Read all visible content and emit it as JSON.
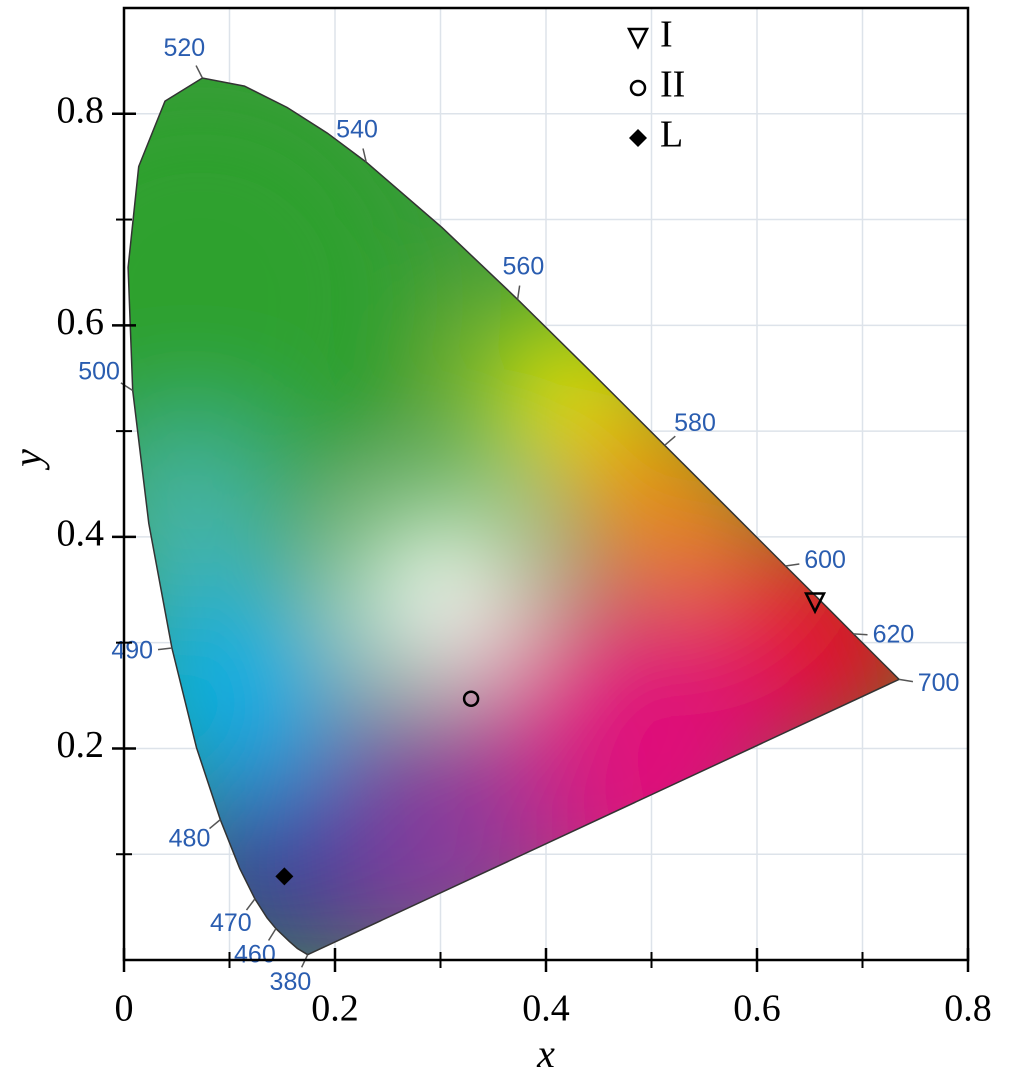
{
  "chart_data": {
    "type": "scatter",
    "xlabel": "x",
    "ylabel": "y",
    "xlim": [
      0,
      0.8
    ],
    "ylim": [
      0,
      0.9
    ],
    "xticks": [
      0,
      0.2,
      0.4,
      0.6,
      0.8
    ],
    "yticks": [
      0.2,
      0.4,
      0.6,
      0.8
    ],
    "xminorticks": [
      0.1,
      0.3,
      0.5,
      0.7
    ],
    "yminorticks": [
      0.1,
      0.3,
      0.5,
      0.7
    ],
    "grid": true,
    "locus": {
      "x": [
        0.1741,
        0.1644,
        0.1566,
        0.144,
        0.1355,
        0.1241,
        0.1096,
        0.0913,
        0.0687,
        0.0454,
        0.0235,
        0.0082,
        0.0039,
        0.0139,
        0.0389,
        0.0743,
        0.1142,
        0.1547,
        0.1929,
        0.2296,
        0.3016,
        0.3731,
        0.4441,
        0.5125,
        0.5752,
        0.627,
        0.6658,
        0.6915,
        0.719,
        0.7347
      ],
      "y": [
        0.005,
        0.0109,
        0.0177,
        0.0297,
        0.0399,
        0.0578,
        0.0868,
        0.1327,
        0.2007,
        0.295,
        0.4127,
        0.5384,
        0.6548,
        0.7502,
        0.812,
        0.8338,
        0.8262,
        0.8059,
        0.7816,
        0.7543,
        0.6923,
        0.6245,
        0.5547,
        0.4866,
        0.4242,
        0.3725,
        0.334,
        0.3083,
        0.2809,
        0.2653
      ]
    },
    "wavelength_labels": [
      {
        "label": "380",
        "x": 0.1741,
        "y": 0.005
      },
      {
        "label": "460",
        "x": 0.144,
        "y": 0.0297
      },
      {
        "label": "470",
        "x": 0.1241,
        "y": 0.0578
      },
      {
        "label": "480",
        "x": 0.0913,
        "y": 0.1327
      },
      {
        "label": "490",
        "x": 0.0454,
        "y": 0.295
      },
      {
        "label": "500",
        "x": 0.0082,
        "y": 0.5384
      },
      {
        "label": "520",
        "x": 0.0743,
        "y": 0.8338
      },
      {
        "label": "540",
        "x": 0.2296,
        "y": 0.7543
      },
      {
        "label": "560",
        "x": 0.3731,
        "y": 0.6245
      },
      {
        "label": "580",
        "x": 0.5125,
        "y": 0.4866
      },
      {
        "label": "600",
        "x": 0.627,
        "y": 0.3725
      },
      {
        "label": "620",
        "x": 0.6915,
        "y": 0.3083
      },
      {
        "label": "700",
        "x": 0.7347,
        "y": 0.2653
      }
    ],
    "series": [
      {
        "name": "I",
        "marker": "triangle-down",
        "color": "#000000",
        "x": [
          0.655
        ],
        "values": [
          0.338
        ]
      },
      {
        "name": "II",
        "marker": "circle",
        "color": "#000000",
        "x": [
          0.329
        ],
        "values": [
          0.247
        ]
      },
      {
        "name": "L",
        "marker": "diamond",
        "color": "#000000",
        "x": [
          0.152
        ],
        "values": [
          0.079
        ]
      }
    ]
  }
}
